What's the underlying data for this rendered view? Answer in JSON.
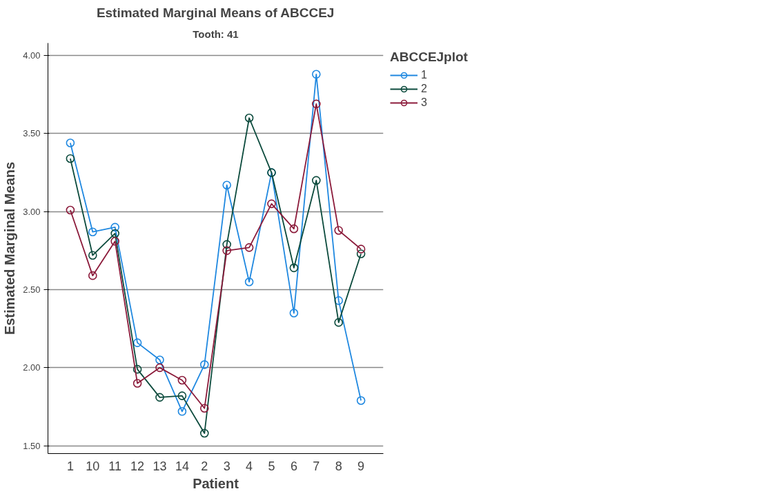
{
  "chart_data": {
    "type": "line",
    "title": "Estimated Marginal Means of ABCCEJ",
    "subtitle": "Tooth: 41",
    "xlabel": "Patient",
    "ylabel": "Estimated Marginal Means",
    "legend_title": "ABCCEJplot",
    "legend": "top right",
    "grid": "y",
    "marker": "circle",
    "line_style": "solid",
    "categories": [
      "1",
      "10",
      "11",
      "12",
      "13",
      "14",
      "2",
      "3",
      "4",
      "5",
      "6",
      "7",
      "8",
      "9"
    ],
    "ylim": [
      1.45,
      4.08
    ],
    "yticks": [
      {
        "value": 1.5,
        "label": "1.50"
      },
      {
        "value": 2.0,
        "label": "2.00"
      },
      {
        "value": 2.5,
        "label": "2.50"
      },
      {
        "value": 3.0,
        "label": "3.00"
      },
      {
        "value": 3.5,
        "label": "3.50"
      },
      {
        "value": 4.0,
        "label": "4.00"
      }
    ],
    "series": [
      {
        "name": "1",
        "color": "#1f88e0",
        "values": [
          3.44,
          2.87,
          2.9,
          2.16,
          2.05,
          1.72,
          2.02,
          3.17,
          2.55,
          3.25,
          2.35,
          3.88,
          2.43,
          1.79
        ]
      },
      {
        "name": "2",
        "color": "#0b4a3c",
        "values": [
          3.34,
          2.72,
          2.86,
          1.99,
          1.81,
          1.82,
          1.58,
          2.79,
          3.6,
          3.25,
          2.64,
          3.2,
          2.29,
          2.73
        ]
      },
      {
        "name": "3",
        "color": "#8b1a3a",
        "values": [
          3.01,
          2.59,
          2.81,
          1.9,
          2.0,
          1.92,
          1.74,
          2.75,
          2.77,
          3.05,
          2.89,
          3.69,
          2.88,
          2.76
        ]
      }
    ]
  }
}
